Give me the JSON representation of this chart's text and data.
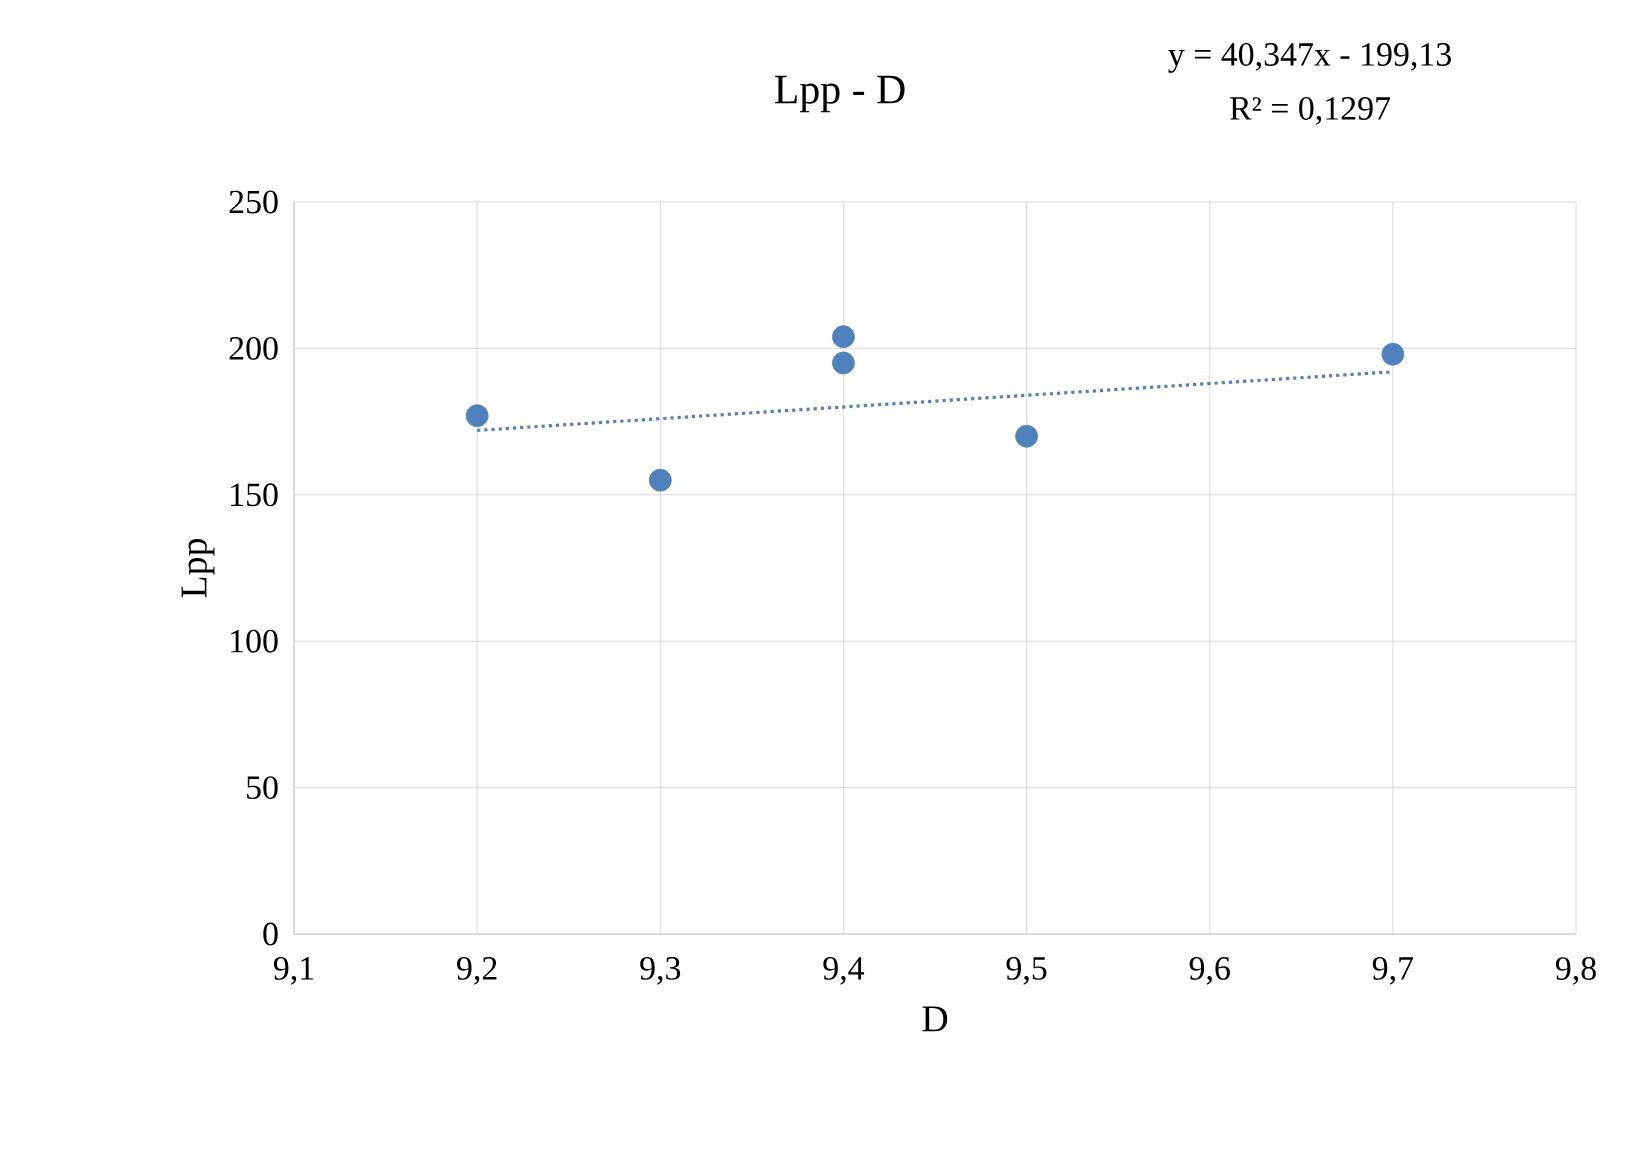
{
  "chart_data": {
    "type": "scatter",
    "title": "Lpp - D",
    "xlabel": "D",
    "ylabel": "Lpp",
    "annotations": [
      "y = 40,347x - 199,13",
      "R² = 0,1297"
    ],
    "series": [
      {
        "color": "#4f81bd",
        "marker": "circle",
        "x": [
          9.2,
          9.3,
          9.4,
          9.4,
          9.5,
          9.7
        ],
        "values": [
          177,
          155,
          204,
          195,
          170,
          198
        ]
      },
      {
        "type": "line",
        "color": "#4f81bd",
        "marker": "none",
        "line_style": "dotted",
        "x": [
          9.2,
          9.7
        ],
        "values": [
          172,
          192
        ]
      }
    ],
    "xlim": [
      9.1,
      9.8
    ],
    "xticks": [
      {
        "value": 9.1,
        "label": "9,1"
      },
      {
        "value": 9.2,
        "label": "9,2"
      },
      {
        "value": 9.3,
        "label": "9,3"
      },
      {
        "value": 9.4,
        "label": "9,4"
      },
      {
        "value": 9.5,
        "label": "9,5"
      },
      {
        "value": 9.6,
        "label": "9,6"
      },
      {
        "value": 9.7,
        "label": "9,7"
      },
      {
        "value": 9.8,
        "label": "9,8"
      }
    ],
    "ylim": [
      0,
      250
    ],
    "yticks": [
      0,
      50,
      100,
      150,
      200,
      250
    ],
    "grid": true
  }
}
